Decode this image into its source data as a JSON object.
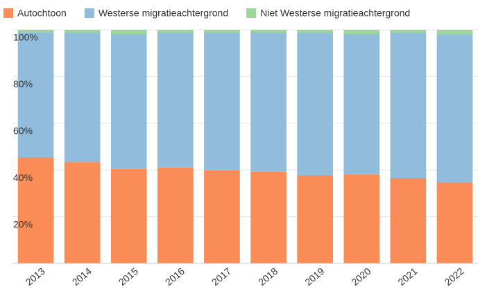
{
  "chart_data": {
    "type": "stacked_bar",
    "categories": [
      "2013",
      "2014",
      "2015",
      "2016",
      "2017",
      "2018",
      "2019",
      "2020",
      "2021",
      "2022"
    ],
    "series": [
      {
        "name": "Autochtoon",
        "color": "#fa8c58",
        "values": [
          45.4,
          43.3,
          40.4,
          41.0,
          39.8,
          39.2,
          37.7,
          38.0,
          36.5,
          34.7
        ]
      },
      {
        "name": "Westerse migratieachtergrond",
        "color": "#92bcdb",
        "values": [
          53.6,
          55.5,
          57.8,
          57.8,
          59.0,
          59.6,
          61.1,
          60.2,
          62.3,
          63.2
        ]
      },
      {
        "name": "Niet Westerse migratieachtergrond",
        "color": "#9bd69b",
        "values": [
          1.0,
          1.2,
          1.8,
          1.2,
          1.2,
          1.2,
          1.2,
          1.8,
          1.2,
          2.1
        ]
      }
    ],
    "ylim": [
      0,
      100
    ],
    "yticks": [
      {
        "value": 20,
        "label": "20%"
      },
      {
        "value": 40,
        "label": "40%"
      },
      {
        "value": 60,
        "label": "60%"
      },
      {
        "value": 80,
        "label": "80%"
      },
      {
        "value": 100,
        "label": "100%"
      }
    ],
    "grid": true
  }
}
